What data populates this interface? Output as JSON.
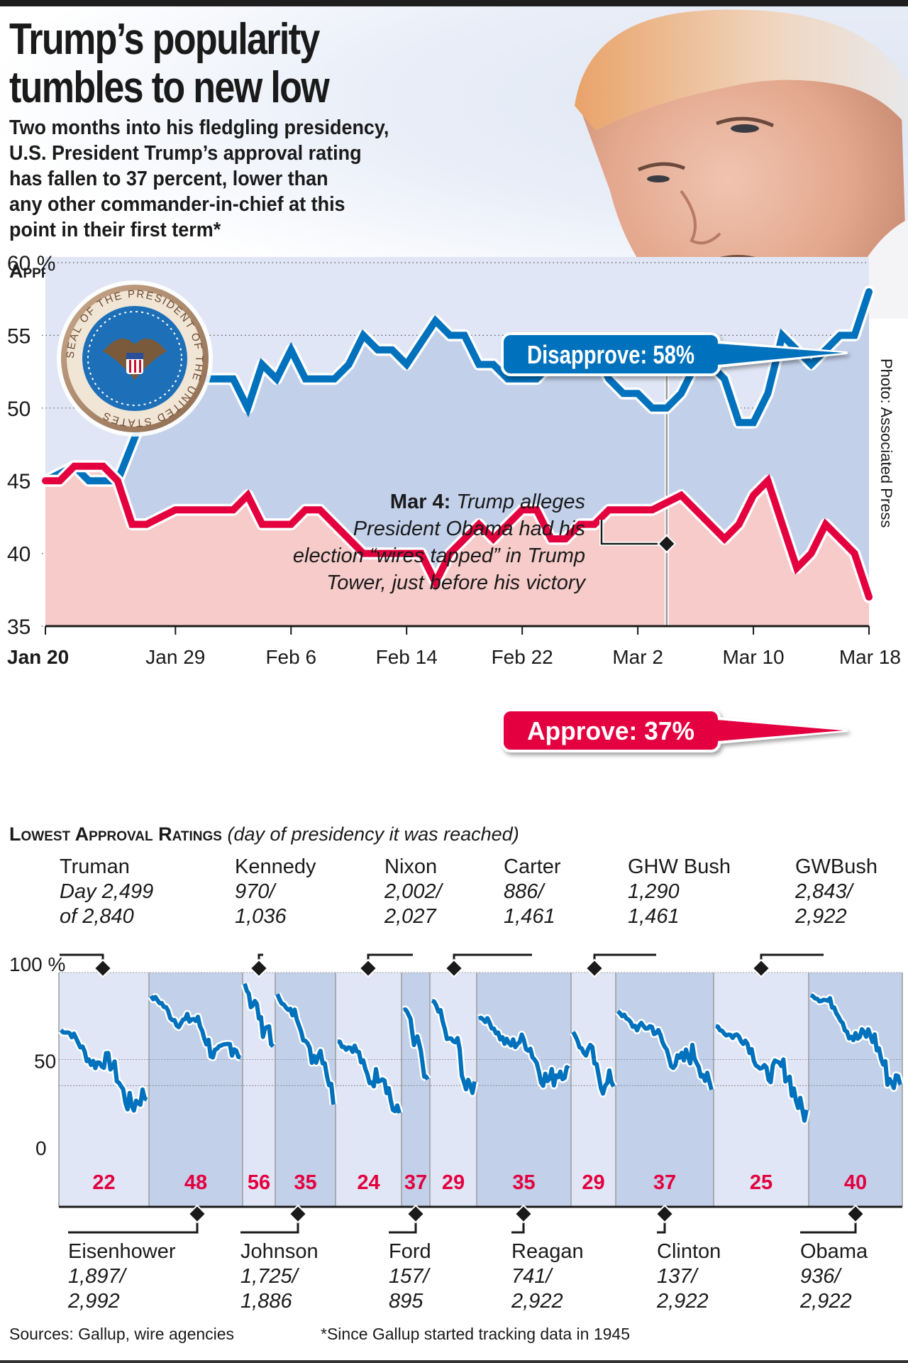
{
  "header": {
    "title_line1": "Trump’s popularity",
    "title_line2": "tumbles to new low",
    "subtitle_lines": [
      "Two months into his fledgling presidency,",
      "U.S. President Trump’s approval rating",
      "has fallen to 37 percent, lower than",
      "any other commander-in-chief at this",
      "point in their first term*"
    ],
    "photo_credit": "Photo: Associated Press",
    "seal_label": "Seal of the President of the United States"
  },
  "colors": {
    "approve": "#e4003f",
    "disapprove": "#0071bc",
    "approve_fill": "#f6cbc9",
    "disapprove_fill": "#c2d0ea",
    "panel_light": "#e0e6f5",
    "panel_dark": "#c2d0ea"
  },
  "chart_data": [
    {
      "type": "line",
      "title": "Approval Rating of President Donald Trump",
      "ylabel": "%",
      "ylim": [
        35,
        60
      ],
      "yticks": [
        {
          "value": 60,
          "label": "60 %"
        },
        {
          "value": 55,
          "label": "55"
        },
        {
          "value": 50,
          "label": "50"
        },
        {
          "value": 45,
          "label": "45"
        },
        {
          "value": 40,
          "label": "40"
        },
        {
          "value": 35,
          "label": "35"
        }
      ],
      "xlim_days": [
        0,
        57
      ],
      "xticks": [
        {
          "day": 0,
          "label": "Jan 20",
          "bold": true
        },
        {
          "day": 9,
          "label": "Jan 29"
        },
        {
          "day": 17,
          "label": "Feb 6"
        },
        {
          "day": 25,
          "label": "Feb 14"
        },
        {
          "day": 33,
          "label": "Feb 22"
        },
        {
          "day": 41,
          "label": "Mar 2"
        },
        {
          "day": 49,
          "label": "Mar 10"
        },
        {
          "day": 57,
          "label": "Mar 18"
        }
      ],
      "grid": true,
      "series": [
        {
          "name": "Disapprove",
          "callout": "Disapprove: 58%",
          "points": [
            [
              0,
              45
            ],
            [
              2,
              46
            ],
            [
              3,
              45
            ],
            [
              5,
              45
            ],
            [
              7,
              50
            ],
            [
              8,
              51
            ],
            [
              9,
              50
            ],
            [
              11,
              52
            ],
            [
              13,
              52
            ],
            [
              14,
              50
            ],
            [
              15,
              53
            ],
            [
              16,
              52
            ],
            [
              17,
              54
            ],
            [
              18,
              52
            ],
            [
              20,
              52
            ],
            [
              21,
              53
            ],
            [
              22,
              55
            ],
            [
              23,
              54
            ],
            [
              24,
              54
            ],
            [
              25,
              53
            ],
            [
              27,
              56
            ],
            [
              28,
              55
            ],
            [
              29,
              55
            ],
            [
              30,
              53
            ],
            [
              31,
              53
            ],
            [
              32,
              52
            ],
            [
              34,
              52
            ],
            [
              36,
              54
            ],
            [
              38,
              54
            ],
            [
              39,
              52
            ],
            [
              40,
              51
            ],
            [
              41,
              51
            ],
            [
              42,
              50
            ],
            [
              43,
              50
            ],
            [
              44,
              51
            ],
            [
              45,
              53
            ],
            [
              46,
              53
            ],
            [
              47,
              52
            ],
            [
              48,
              49
            ],
            [
              49,
              49
            ],
            [
              50,
              51
            ],
            [
              51,
              55
            ],
            [
              53,
              53
            ],
            [
              55,
              55
            ],
            [
              56,
              55
            ],
            [
              57,
              58
            ]
          ]
        },
        {
          "name": "Approve",
          "callout": "Approve: 37%",
          "points": [
            [
              0,
              45
            ],
            [
              1,
              45
            ],
            [
              2,
              46
            ],
            [
              4,
              46
            ],
            [
              5,
              45
            ],
            [
              6,
              42
            ],
            [
              7,
              42
            ],
            [
              9,
              43
            ],
            [
              13,
              43
            ],
            [
              14,
              44
            ],
            [
              15,
              42
            ],
            [
              16,
              42
            ],
            [
              17,
              42
            ],
            [
              18,
              43
            ],
            [
              19,
              43
            ],
            [
              22,
              40
            ],
            [
              24,
              40
            ],
            [
              26,
              40
            ],
            [
              27,
              38
            ],
            [
              28,
              40
            ],
            [
              29,
              41
            ],
            [
              30,
              42
            ],
            [
              31,
              41
            ],
            [
              33,
              43
            ],
            [
              34,
              43
            ],
            [
              35,
              41
            ],
            [
              36,
              41
            ],
            [
              37,
              42
            ],
            [
              38,
              42
            ],
            [
              39,
              43
            ],
            [
              42,
              43
            ],
            [
              44,
              44
            ],
            [
              46,
              42
            ],
            [
              47,
              41
            ],
            [
              48,
              42
            ],
            [
              49,
              44
            ],
            [
              50,
              45
            ],
            [
              52,
              39
            ],
            [
              53,
              40
            ],
            [
              54,
              42
            ],
            [
              56,
              40
            ],
            [
              57,
              37
            ]
          ]
        }
      ],
      "annotation": {
        "day": 43,
        "date_label": "Mar 4:",
        "text_lines": [
          "Trump alleges",
          "President Obama had his",
          "election “wires tapped” in Trump",
          "Tower, just before his victory"
        ]
      }
    },
    {
      "type": "line",
      "title": "Lowest Approval Ratings",
      "subtitle": "(day of presidency it was reached)",
      "ylim": [
        0,
        100
      ],
      "yticks": [
        {
          "value": 100,
          "label": "100 %"
        },
        {
          "value": 50,
          "label": "50"
        },
        {
          "value": 0,
          "label": "0"
        }
      ],
      "presidents": [
        {
          "name": "Truman",
          "day_line1": "Day 2,499",
          "day_line2": "of 2,840",
          "lowest": 22,
          "label_pos": "top"
        },
        {
          "name": "Eisenhower",
          "day_line1": "1,897/",
          "day_line2": "2,992",
          "lowest": 48,
          "label_pos": "bottom"
        },
        {
          "name": "Kennedy",
          "day_line1": "970/",
          "day_line2": "1,036",
          "lowest": 56,
          "label_pos": "top"
        },
        {
          "name": "Johnson",
          "day_line1": "1,725/",
          "day_line2": "1,886",
          "lowest": 35,
          "label_pos": "bottom"
        },
        {
          "name": "Nixon",
          "day_line1": "2,002/",
          "day_line2": "2,027",
          "lowest": 24,
          "label_pos": "top"
        },
        {
          "name": "Ford",
          "day_line1": "157/",
          "day_line2": "895",
          "lowest": 37,
          "label_pos": "bottom"
        },
        {
          "name": "Carter",
          "day_line1": "886/",
          "day_line2": "1,461",
          "lowest": 29,
          "label_pos": "top"
        },
        {
          "name": "Reagan",
          "day_line1": "741/",
          "day_line2": "2,922",
          "lowest": 35,
          "label_pos": "bottom"
        },
        {
          "name": "GHW Bush",
          "day_line1": "1,290",
          "day_line2": "1,461",
          "lowest": 29,
          "label_pos": "top"
        },
        {
          "name": "Clinton",
          "day_line1": "137/",
          "day_line2": "2,922",
          "lowest": 37,
          "label_pos": "bottom"
        },
        {
          "name": "GWBush",
          "day_line1": "2,843/",
          "day_line2": "2,922",
          "lowest": 25,
          "label_pos": "top"
        },
        {
          "name": "Obama",
          "day_line1": "936/",
          "day_line2": "2,922",
          "lowest": 40,
          "label_pos": "bottom"
        }
      ]
    }
  ],
  "footer": {
    "sources": "Sources: Gallup, wire agencies",
    "footnote": "*Since Gallup started tracking data in 1945"
  }
}
